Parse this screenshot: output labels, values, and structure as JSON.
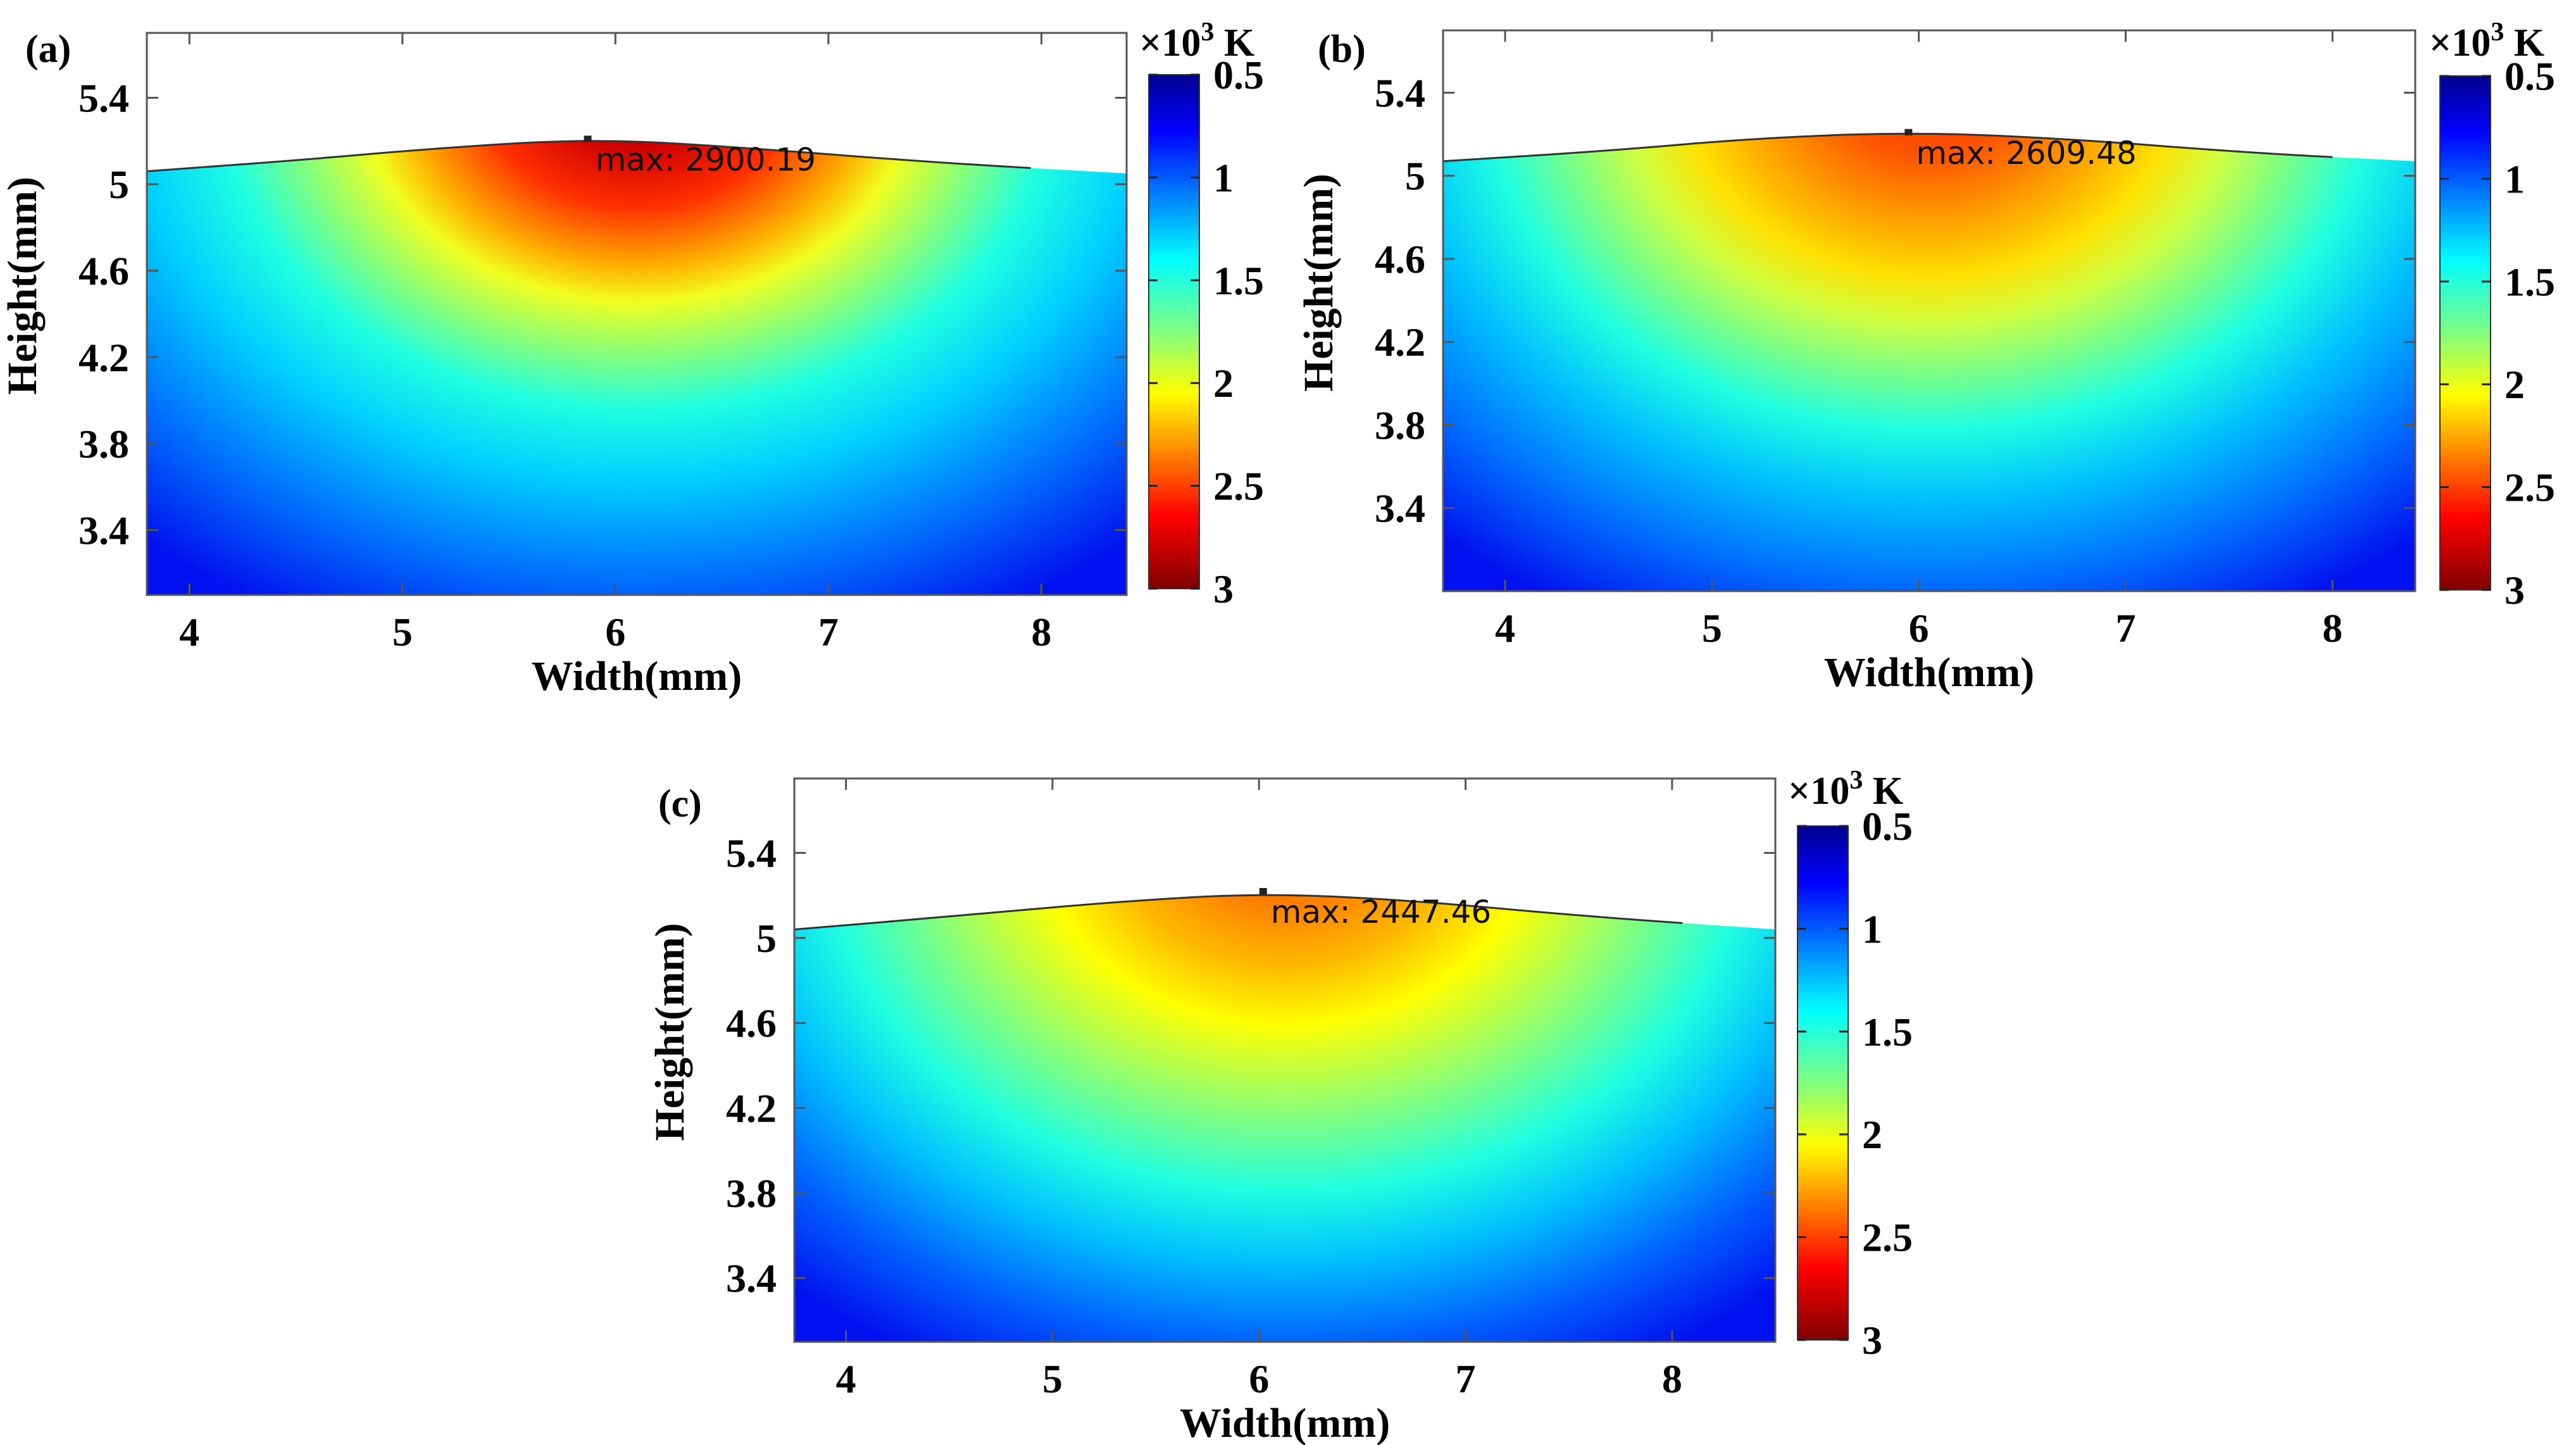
{
  "chart_data": [
    {
      "type": "heatmap",
      "panel_label": "(a)",
      "xlabel": "Width(mm)",
      "ylabel": "Height(mm)",
      "xlim": [
        3.8,
        8.4
      ],
      "ylim": [
        3.1,
        5.7
      ],
      "x_ticks": [
        "4",
        "5",
        "6",
        "7",
        "8"
      ],
      "y_ticks": [
        "3.4",
        "3.8",
        "4.2",
        "4.6",
        "5",
        "5.4"
      ],
      "colorbar_unit_prefix": "×10",
      "colorbar_unit_exp": "3",
      "colorbar_unit_suffix": " K",
      "colorbar_ticks": [
        "0.5",
        "1",
        "1.5",
        "2",
        "2.5",
        "3"
      ],
      "colorbar_range": [
        0.5,
        3
      ],
      "max_label": "max: 2900.19",
      "max_value": 2900.19,
      "max_point": [
        5.87,
        5.21
      ],
      "surface_profile": [
        [
          3.8,
          5.06
        ],
        [
          4.5,
          5.11
        ],
        [
          5.2,
          5.17
        ],
        [
          5.9,
          5.21
        ],
        [
          6.6,
          5.17
        ],
        [
          7.5,
          5.1
        ],
        [
          8.4,
          5.05
        ]
      ]
    },
    {
      "type": "heatmap",
      "panel_label": "(b)",
      "xlabel": "Width(mm)",
      "ylabel": "Height(mm)",
      "xlim": [
        3.7,
        8.4
      ],
      "ylim": [
        3.0,
        5.7
      ],
      "x_ticks": [
        "4",
        "5",
        "6",
        "7",
        "8"
      ],
      "y_ticks": [
        "3.4",
        "3.8",
        "4.2",
        "4.6",
        "5",
        "5.4"
      ],
      "colorbar_unit_prefix": "×10",
      "colorbar_unit_exp": "3",
      "colorbar_unit_suffix": " K",
      "colorbar_ticks": [
        "0.5",
        "1",
        "1.5",
        "2",
        "2.5",
        "3"
      ],
      "colorbar_range": [
        0.5,
        3
      ],
      "max_label": "max: 2609.48",
      "max_value": 2609.48,
      "max_point": [
        5.95,
        5.21
      ],
      "surface_profile": [
        [
          3.7,
          5.07
        ],
        [
          4.5,
          5.12
        ],
        [
          5.2,
          5.18
        ],
        [
          5.95,
          5.21
        ],
        [
          6.7,
          5.18
        ],
        [
          7.6,
          5.11
        ],
        [
          8.4,
          5.07
        ]
      ]
    },
    {
      "type": "heatmap",
      "panel_label": "(c)",
      "xlabel": "Width(mm)",
      "ylabel": "Height(mm)",
      "xlim": [
        3.75,
        8.5
      ],
      "ylim": [
        3.1,
        5.75
      ],
      "x_ticks": [
        "4",
        "5",
        "6",
        "7",
        "8"
      ],
      "y_ticks": [
        "3.4",
        "3.8",
        "4.2",
        "4.6",
        "5",
        "5.4"
      ],
      "colorbar_unit_prefix": "×10",
      "colorbar_unit_exp": "3",
      "colorbar_unit_suffix": " K",
      "colorbar_ticks": [
        "0.5",
        "1",
        "1.5",
        "2",
        "2.5",
        "3"
      ],
      "colorbar_range": [
        0.5,
        3
      ],
      "max_label": "max: 2447.46",
      "max_value": 2447.46,
      "max_point": [
        6.02,
        5.22
      ],
      "surface_profile": [
        [
          3.75,
          5.04
        ],
        [
          4.5,
          5.1
        ],
        [
          5.3,
          5.17
        ],
        [
          6.0,
          5.21
        ],
        [
          6.7,
          5.18
        ],
        [
          7.6,
          5.1
        ],
        [
          8.5,
          5.04
        ]
      ]
    }
  ]
}
